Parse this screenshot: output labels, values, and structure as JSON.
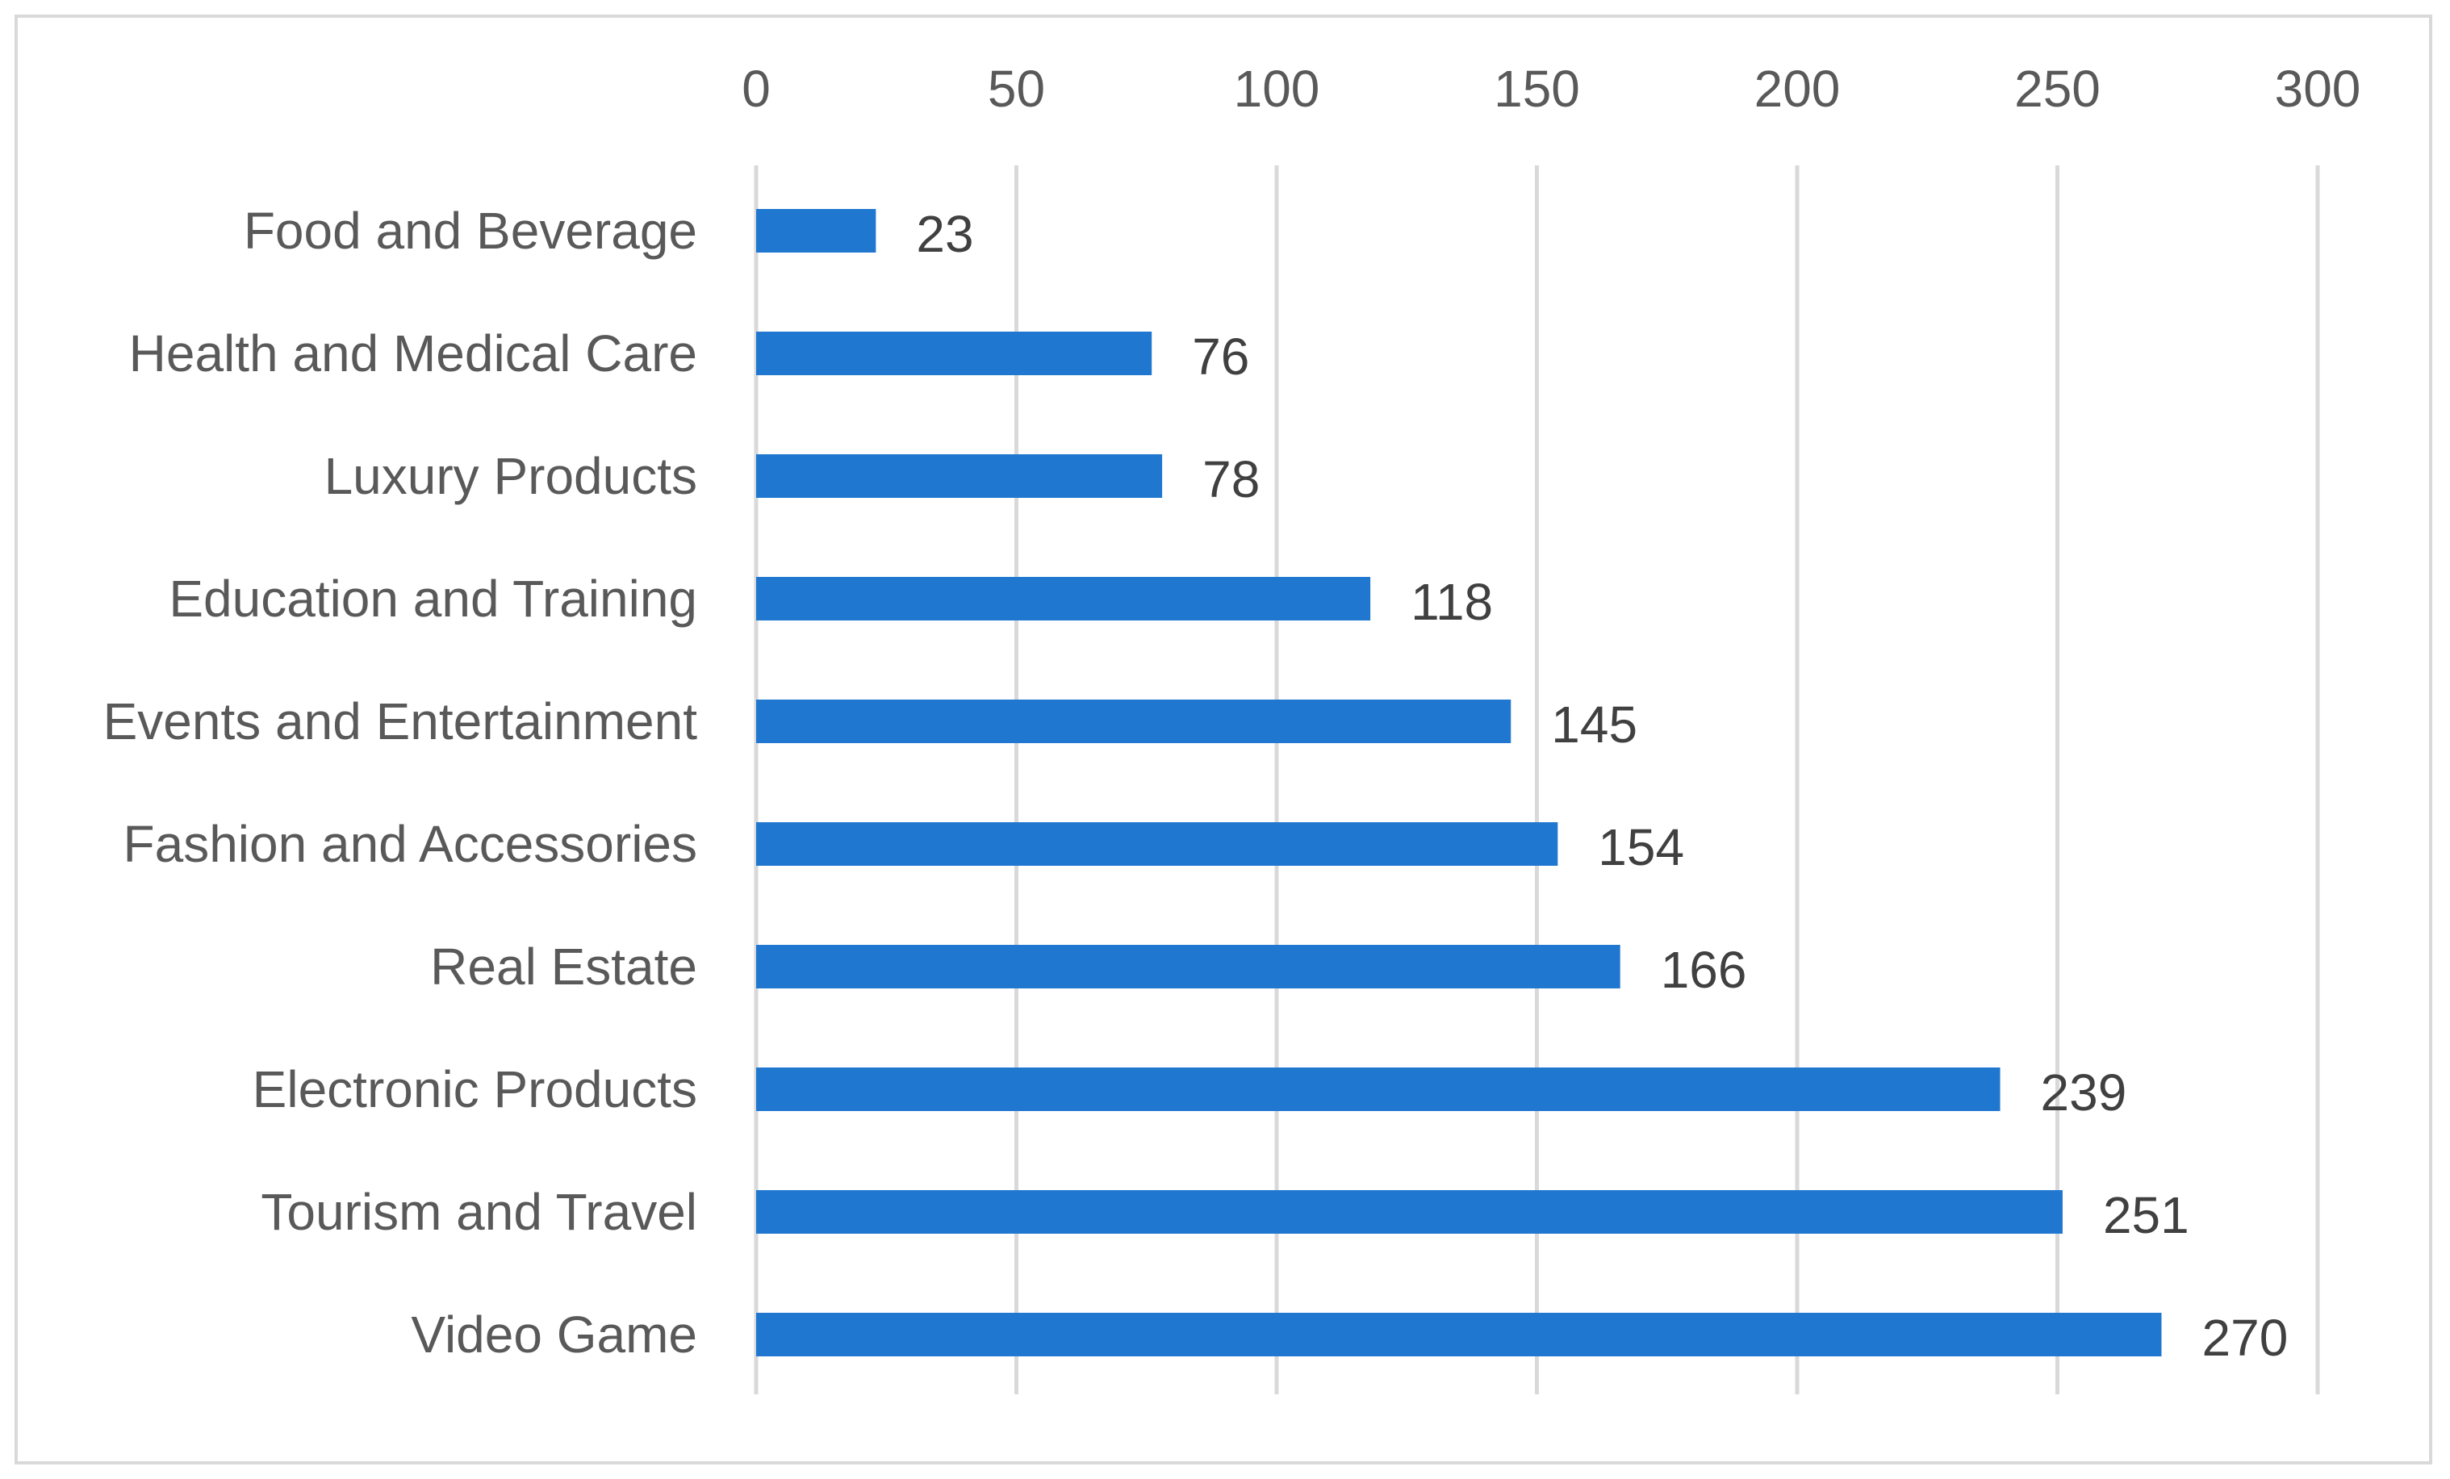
{
  "chart_data": {
    "type": "bar",
    "orientation": "horizontal",
    "title": "",
    "xlabel": "",
    "ylabel": "",
    "categories": [
      "Food and Beverage",
      "Health and Medical Care",
      "Luxury Products",
      "Education and Training",
      "Events and Entertainment",
      "Fashion and Accessories",
      "Real Estate",
      "Electronic Products",
      "Tourism and Travel",
      "Video Game"
    ],
    "values": [
      23,
      76,
      78,
      118,
      145,
      154,
      166,
      239,
      251,
      270
    ],
    "xlim": [
      0,
      300
    ],
    "ticks": [
      "0",
      "50",
      "100",
      "150",
      "200",
      "250",
      "300"
    ],
    "tick_values": [
      0,
      50,
      100,
      150,
      200,
      250,
      300
    ],
    "axis_position": "top",
    "grid": true,
    "legend": "none",
    "data_labels": true,
    "colors": {
      "bar": "#1f77d0",
      "grid": "#d9d9d9",
      "text": "#595959",
      "label": "#404040"
    }
  }
}
